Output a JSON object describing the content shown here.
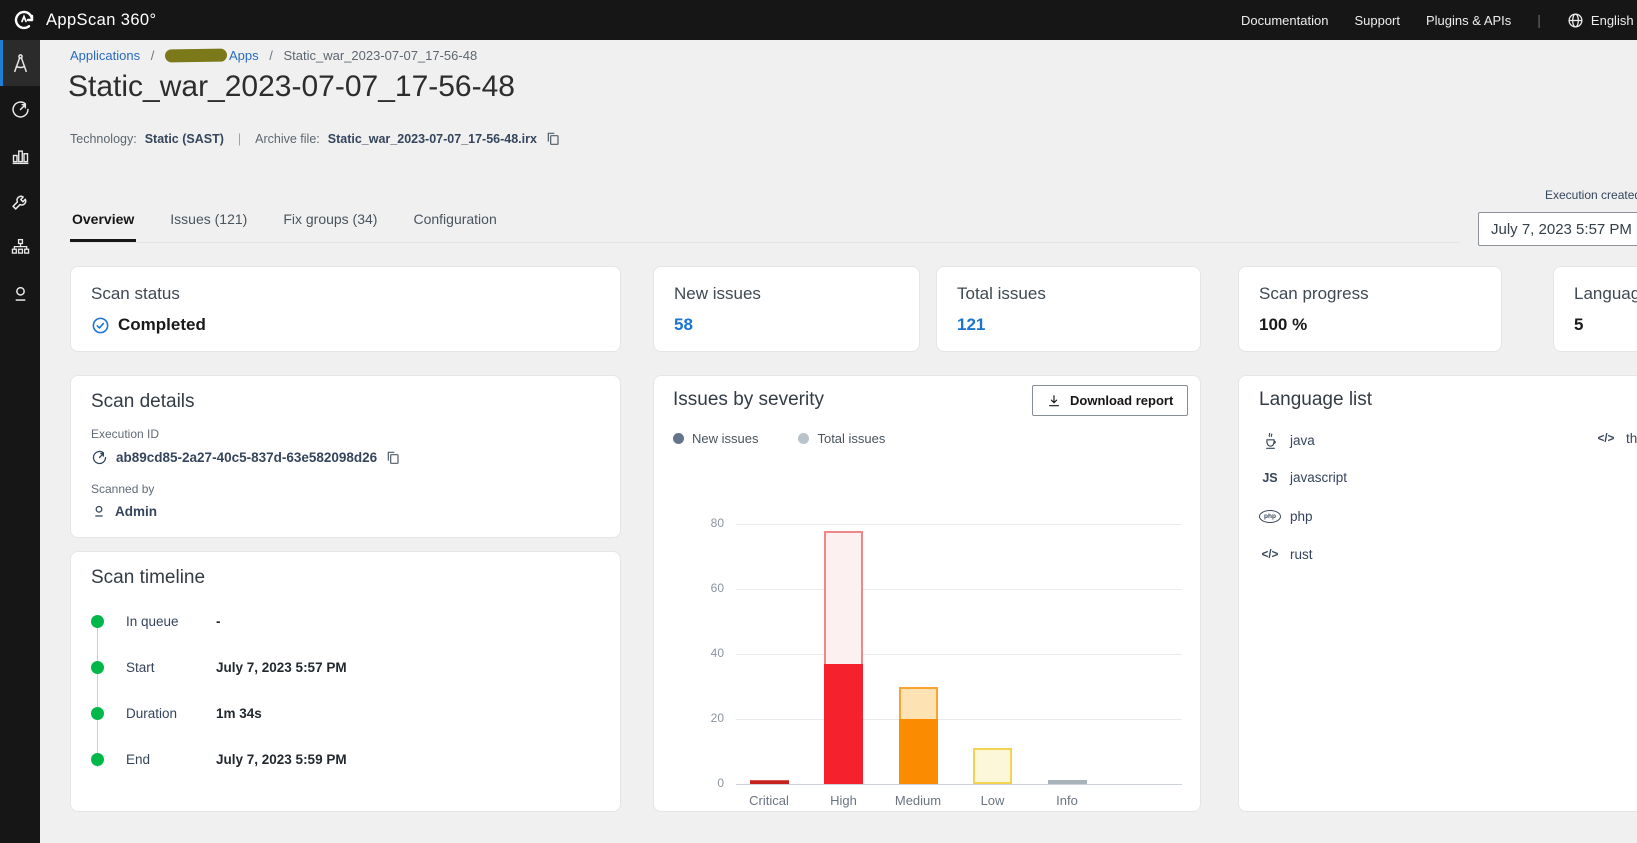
{
  "header": {
    "brand": "AppScan 360°",
    "nav": [
      {
        "label": "Documentation"
      },
      {
        "label": "Support"
      },
      {
        "label": "Plugins & APIs"
      }
    ],
    "language": "English"
  },
  "sidebar": {
    "items": [
      {
        "name": "applications",
        "icon": "compass-icon",
        "active": true
      },
      {
        "name": "scans",
        "icon": "gauge-icon",
        "active": false
      },
      {
        "name": "dashboards",
        "icon": "bar-chart-icon",
        "active": false
      },
      {
        "name": "tools",
        "icon": "wrench-icon",
        "active": false
      },
      {
        "name": "organization",
        "icon": "hierarchy-icon",
        "active": false
      },
      {
        "name": "user",
        "icon": "person-icon",
        "active": false
      }
    ]
  },
  "breadcrumb": {
    "items": [
      {
        "label": "Applications",
        "link": true
      },
      {
        "label": "Apps",
        "link": true,
        "redacted_prefix": true
      },
      {
        "label": "Static_war_2023-07-07_17-56-48",
        "link": false
      }
    ],
    "separator": "/"
  },
  "page": {
    "title": "Static_war_2023-07-07_17-56-48",
    "technology_label": "Technology:",
    "technology_value": "Static (SAST)",
    "archive_label": "Archive file:",
    "archive_value": "Static_war_2023-07-07_17-56-48.irx"
  },
  "execution_created": {
    "label": "Execution created",
    "value": "July 7, 2023 5:57 PM"
  },
  "tabs": [
    {
      "label": "Overview",
      "active": true
    },
    {
      "label": "Issues (121)",
      "active": false
    },
    {
      "label": "Fix groups (34)",
      "active": false
    },
    {
      "label": "Configuration",
      "active": false
    }
  ],
  "summary_cards": {
    "scan_status": {
      "label": "Scan status",
      "value": "Completed"
    },
    "new_issues": {
      "label": "New issues",
      "value": "58"
    },
    "total_issues": {
      "label": "Total issues",
      "value": "121"
    },
    "scan_progress": {
      "label": "Scan progress",
      "value": "100 %"
    },
    "languages": {
      "label": "Languages",
      "value": "5"
    }
  },
  "scan_details": {
    "title": "Scan details",
    "execution_id_label": "Execution ID",
    "execution_id": "ab89cd85-2a27-40c5-837d-63e582098d26",
    "scanned_by_label": "Scanned by",
    "scanned_by": "Admin"
  },
  "scan_timeline": {
    "title": "Scan timeline",
    "events": [
      {
        "label": "In queue",
        "value": "-"
      },
      {
        "label": "Start",
        "value": "July 7, 2023 5:57 PM"
      },
      {
        "label": "Duration",
        "value": "1m 34s"
      },
      {
        "label": "End",
        "value": "July 7, 2023 5:59 PM"
      }
    ]
  },
  "issues_by_severity": {
    "title": "Issues by severity",
    "download_button": "Download report",
    "legend": [
      {
        "label": "New issues",
        "color": "#64748b"
      },
      {
        "label": "Total issues",
        "color": "#b9c3cc"
      }
    ]
  },
  "chart_data": {
    "type": "bar",
    "title": "Issues by severity",
    "categories": [
      "Critical",
      "High",
      "Medium",
      "Low",
      "Info"
    ],
    "series": [
      {
        "name": "New issues",
        "values": [
          1,
          37,
          20,
          0,
          0
        ]
      },
      {
        "name": "Total issues",
        "values": [
          1,
          78,
          30,
          11,
          1
        ]
      }
    ],
    "xlabel": "",
    "ylabel": "",
    "ylim": [
      0,
      80
    ],
    "yticks": [
      0,
      20,
      40,
      60,
      80
    ],
    "grid": true,
    "legend_position": "top-left",
    "colors": {
      "Critical": {
        "solid": "#c5221f",
        "fill": "#fbdddd",
        "border": "#d9544f"
      },
      "High": {
        "solid": "#f5222d",
        "fill": "#fdf0f1",
        "border": "#f08787"
      },
      "Medium": {
        "solid": "#fb8b00",
        "fill": "#fde3b3",
        "border": "#fba32f"
      },
      "Low": {
        "solid": "#f3d34f",
        "fill": "#fcf7d9",
        "border": "#f3d34f"
      },
      "Info": {
        "solid": "#a8b2bb",
        "fill": "#eef1f3",
        "border": "#a8b2bb"
      }
    }
  },
  "language_list": {
    "title": "Language list",
    "items": [
      {
        "name": "java",
        "icon": "java-icon"
      },
      {
        "name": "javascript",
        "icon": "js-icon"
      },
      {
        "name": "php",
        "icon": "php-icon"
      },
      {
        "name": "rust",
        "icon": "code-icon"
      },
      {
        "name": "thirdparty",
        "icon": "code-icon"
      }
    ]
  },
  "colors": {
    "header_bg": "#161616",
    "sidebar_accent": "#1f7ed6",
    "link_blue": "#2a6bc0",
    "value_blue": "#1974d2",
    "timeline_green": "#00b74a",
    "status_check_blue": "#1974d2",
    "page_bg": "#f0f0f0"
  }
}
